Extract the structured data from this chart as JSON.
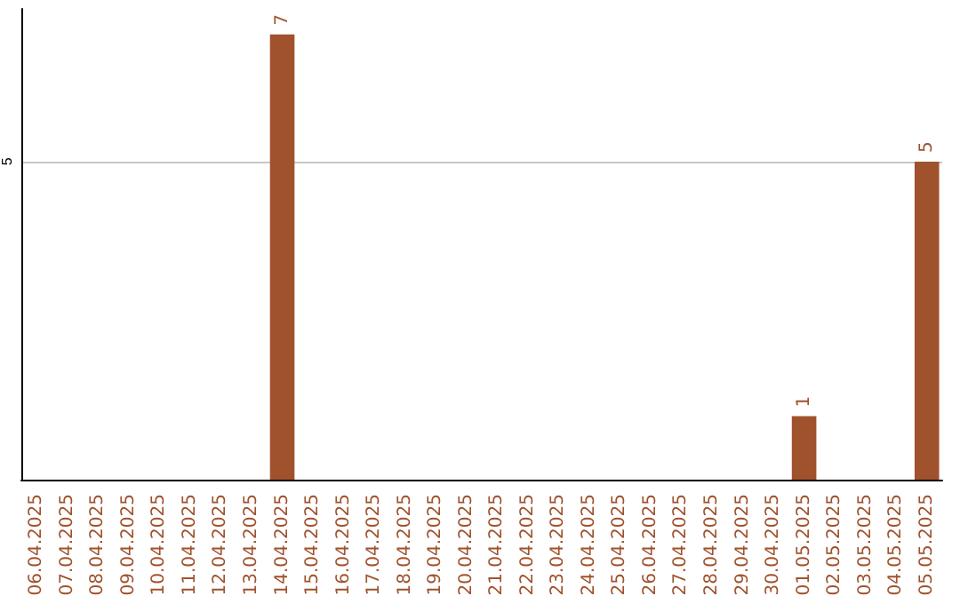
{
  "chart_data": {
    "type": "bar",
    "categories": [
      "06.04.2025",
      "07.04.2025",
      "08.04.2025",
      "09.04.2025",
      "10.04.2025",
      "11.04.2025",
      "12.04.2025",
      "13.04.2025",
      "14.04.2025",
      "15.04.2025",
      "16.04.2025",
      "17.04.2025",
      "18.04.2025",
      "19.04.2025",
      "20.04.2025",
      "21.04.2025",
      "22.04.2025",
      "23.04.2025",
      "24.04.2025",
      "25.04.2025",
      "26.04.2025",
      "27.04.2025",
      "28.04.2025",
      "29.04.2025",
      "30.04.2025",
      "01.05.2025",
      "02.05.2025",
      "03.05.2025",
      "04.05.2025",
      "05.05.2025"
    ],
    "values": [
      0,
      0,
      0,
      0,
      0,
      0,
      0,
      0,
      7,
      0,
      0,
      0,
      0,
      0,
      0,
      0,
      0,
      0,
      0,
      0,
      0,
      0,
      0,
      0,
      0,
      1,
      0,
      0,
      0,
      5
    ],
    "value_labels": [
      null,
      null,
      null,
      null,
      null,
      null,
      null,
      null,
      "7",
      null,
      null,
      null,
      null,
      null,
      null,
      null,
      null,
      null,
      null,
      null,
      null,
      null,
      null,
      null,
      null,
      "1",
      null,
      null,
      null,
      "5"
    ],
    "color": "#a0522d",
    "ylim": [
      0,
      7.4
    ],
    "yticks": [
      5
    ],
    "grid": "y"
  }
}
